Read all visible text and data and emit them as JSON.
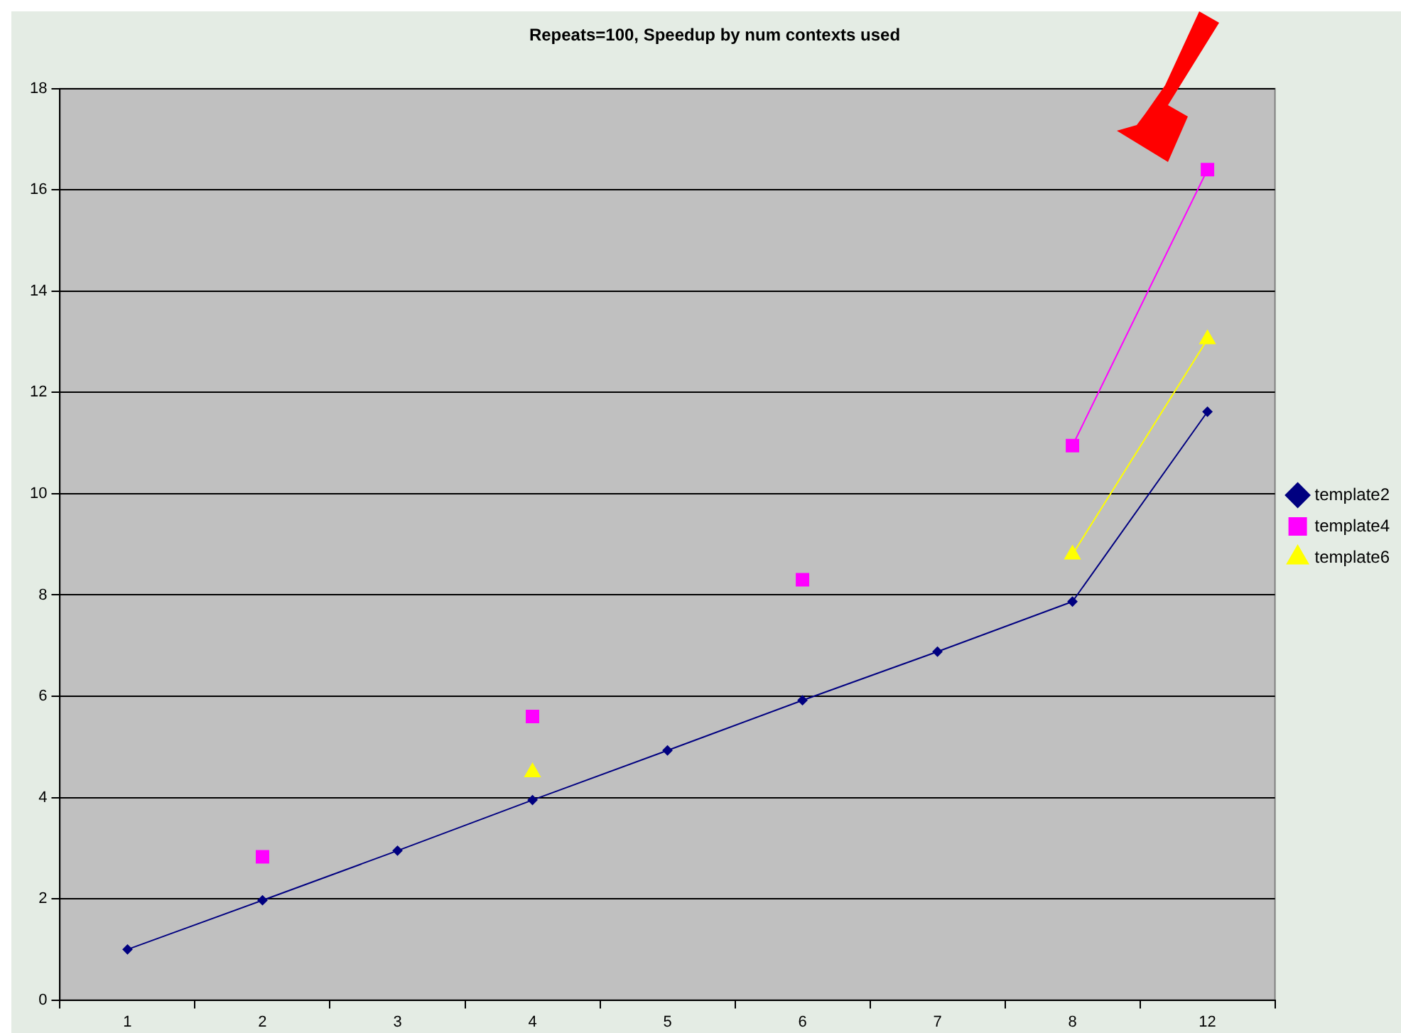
{
  "chart_data": {
    "type": "line",
    "title": "Repeats=100, Speedup by num contexts used",
    "categories": [
      "1",
      "2",
      "3",
      "4",
      "5",
      "6",
      "7",
      "8",
      "12"
    ],
    "series": [
      {
        "name": "template2",
        "color": "#000080",
        "marker": "diamond",
        "values": [
          1,
          1.97,
          2.95,
          3.95,
          4.93,
          5.92,
          6.88,
          7.87,
          11.62
        ]
      },
      {
        "name": "template4",
        "color": "#ff00ff",
        "marker": "square",
        "values": [
          null,
          2.83,
          null,
          5.6,
          null,
          8.3,
          null,
          10.95,
          16.4
        ]
      },
      {
        "name": "template6",
        "color": "#ffff00",
        "marker": "triangle",
        "values": [
          null,
          null,
          null,
          4.5,
          null,
          null,
          null,
          8.8,
          13.05
        ]
      }
    ],
    "ylim": [
      0,
      18
    ],
    "yticks": [
      0,
      2,
      4,
      6,
      8,
      10,
      12,
      14,
      16,
      18
    ],
    "grid": "y",
    "legend": "right",
    "line_style": "solid"
  }
}
